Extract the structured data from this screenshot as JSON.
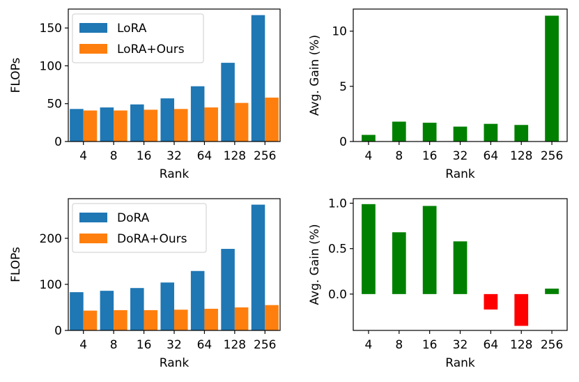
{
  "chart_data": [
    {
      "type": "bar",
      "panel": "top-left",
      "categories": [
        "4",
        "8",
        "16",
        "32",
        "64",
        "128",
        "256"
      ],
      "series": [
        {
          "name": "LoRA",
          "color": "#1f77b4",
          "values": [
            43,
            45,
            49,
            57,
            73,
            104,
            167
          ]
        },
        {
          "name": "LoRA+Ours",
          "color": "#ff7f0e",
          "values": [
            41,
            41,
            42,
            43,
            45,
            51,
            58
          ]
        }
      ],
      "xlabel": "Rank",
      "ylabel": "FLOPs",
      "ylim": [
        0,
        175
      ],
      "yticks": [
        0,
        50,
        100,
        150
      ],
      "legend": "top-left"
    },
    {
      "type": "bar",
      "panel": "top-right",
      "categories": [
        "4",
        "8",
        "16",
        "32",
        "64",
        "128",
        "256"
      ],
      "series": [
        {
          "name": "Avg. Gain",
          "values": [
            0.6,
            1.8,
            1.7,
            1.35,
            1.6,
            1.5,
            11.4
          ]
        }
      ],
      "positive_color": "#008000",
      "negative_color": "#ff0000",
      "xlabel": "Rank",
      "ylabel": "Avg. Gain (%)",
      "ylim": [
        0,
        12
      ],
      "yticks": [
        0,
        5,
        10
      ]
    },
    {
      "type": "bar",
      "panel": "bottom-left",
      "categories": [
        "4",
        "8",
        "16",
        "32",
        "64",
        "128",
        "256"
      ],
      "series": [
        {
          "name": "DoRA",
          "color": "#1f77b4",
          "values": [
            83,
            86,
            92,
            104,
            129,
            177,
            273
          ]
        },
        {
          "name": "DoRA+Ours",
          "color": "#ff7f0e",
          "values": [
            43,
            44,
            44,
            45,
            47,
            50,
            55
          ]
        }
      ],
      "xlabel": "Rank",
      "ylabel": "FLOPs",
      "ylim": [
        0,
        286
      ],
      "yticks": [
        0,
        100,
        200
      ],
      "legend": "top-left"
    },
    {
      "type": "bar",
      "panel": "bottom-right",
      "categories": [
        "4",
        "8",
        "16",
        "32",
        "64",
        "128",
        "256"
      ],
      "series": [
        {
          "name": "Avg. Gain",
          "values": [
            0.99,
            0.68,
            0.97,
            0.58,
            -0.17,
            -0.35,
            0.06
          ]
        }
      ],
      "positive_color": "#008000",
      "negative_color": "#ff0000",
      "xlabel": "Rank",
      "ylabel": "Avg. Gain (%)",
      "ylim": [
        -0.4,
        1.05
      ],
      "yticks": [
        0.0,
        0.5,
        1.0
      ],
      "ytick_labels": [
        "0.0",
        "0.5",
        "1.0"
      ]
    }
  ]
}
